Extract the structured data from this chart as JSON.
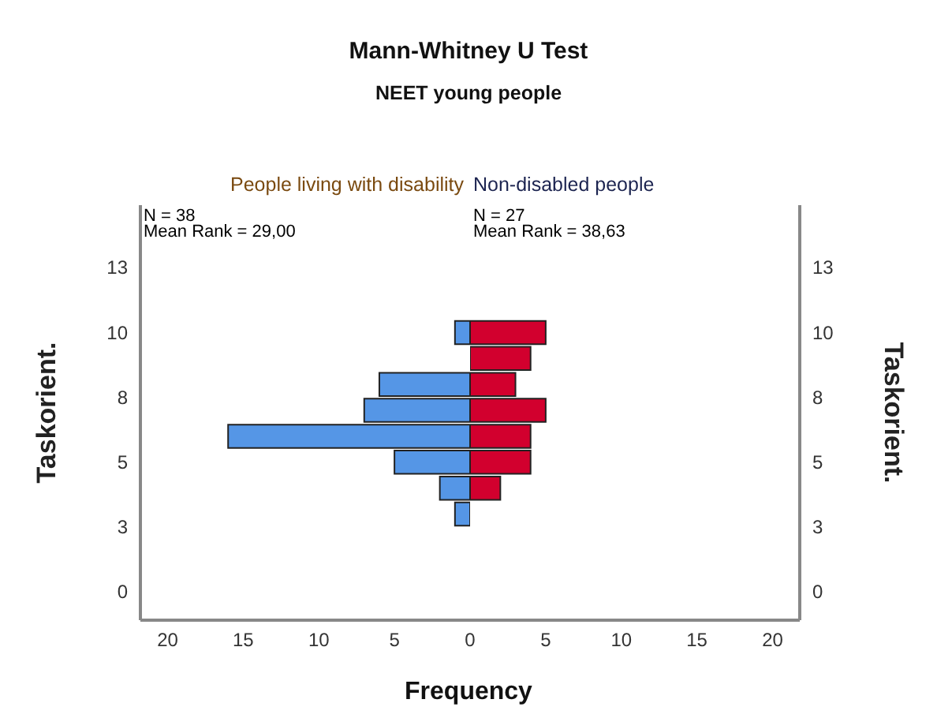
{
  "chart_data": [
    {
      "type": "histogram",
      "orientation": "horizontal",
      "title": "Mann-Whitney U Test",
      "subtitle": "NEET young people",
      "ylabel": "Taskorient.",
      "xlabel": "Frequency",
      "annotations": [
        "N = 38",
        "Mean Rank = 29,00"
      ],
      "bins": [
        2.5,
        3.5,
        4.5,
        5.5,
        6.5,
        7.5,
        8.5,
        9.5,
        10.5
      ],
      "series": [
        {
          "name": "People living with disability",
          "color": "#5596e6",
          "values": [
            1,
            2,
            5,
            16,
            7,
            6,
            0,
            1
          ]
        }
      ],
      "xlim": [
        21.8,
        0
      ],
      "xticks": [
        20,
        15,
        10,
        5
      ],
      "ylim": [
        -1.1,
        14.9
      ],
      "yticks": [
        {
          "value": 0,
          "label": "0"
        },
        {
          "value": 2.5,
          "label": "3"
        },
        {
          "value": 5,
          "label": "5"
        },
        {
          "value": 7.5,
          "label": "8"
        },
        {
          "value": 10,
          "label": "10"
        },
        {
          "value": 12.5,
          "label": "13"
        }
      ]
    },
    {
      "type": "histogram",
      "orientation": "horizontal",
      "ylabel": "Taskorient.",
      "annotations": [
        "N = 27",
        "Mean Rank = 38,63"
      ],
      "bins": [
        2.5,
        3.5,
        4.5,
        5.5,
        6.5,
        7.5,
        8.5,
        9.5,
        10.5
      ],
      "series": [
        {
          "name": "Non-disabled people",
          "color": "#d2002e",
          "values": [
            0,
            2,
            4,
            4,
            5,
            3,
            4,
            5
          ]
        }
      ],
      "xlim": [
        0,
        21.8
      ],
      "xticks": [
        0,
        5,
        10,
        15,
        20
      ],
      "ylim": [
        -1.1,
        14.9
      ],
      "yticks": [
        {
          "value": 0,
          "label": "0"
        },
        {
          "value": 2.5,
          "label": "3"
        },
        {
          "value": 5,
          "label": "5"
        },
        {
          "value": 7.5,
          "label": "8"
        },
        {
          "value": 10,
          "label": "10"
        },
        {
          "value": 12.5,
          "label": "13"
        }
      ]
    }
  ]
}
